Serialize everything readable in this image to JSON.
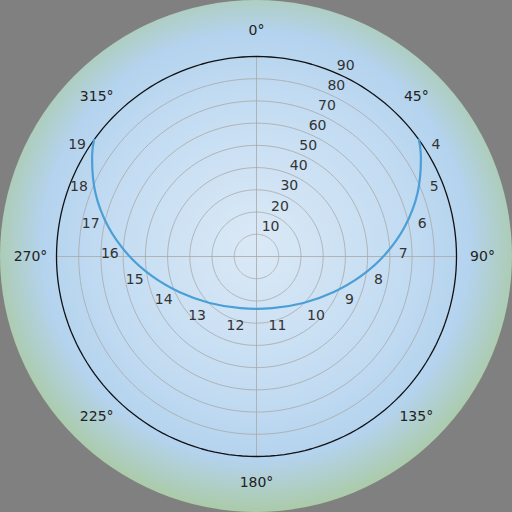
{
  "chart_data": {
    "type": "sun_path",
    "rlim": [
      0,
      90
    ],
    "rticks": [
      10,
      20,
      30,
      40,
      50,
      60,
      70,
      80,
      90
    ],
    "azimuth_ticks": [
      {
        "value": 0,
        "label": "0°"
      },
      {
        "value": 45,
        "label": "45°"
      },
      {
        "value": 90,
        "label": "90°"
      },
      {
        "value": 135,
        "label": "135°"
      },
      {
        "value": 180,
        "label": "180°"
      },
      {
        "value": 225,
        "label": "225°"
      },
      {
        "value": 270,
        "label": "270°"
      },
      {
        "value": 315,
        "label": "315°"
      }
    ],
    "color": "#4a9fd6",
    "grid": true,
    "hours": [
      null,
      4,
      5,
      6,
      7,
      8,
      9,
      10,
      11,
      12,
      13,
      14,
      15,
      16,
      17,
      18,
      19,
      null
    ],
    "azimuth": [
      54.3,
      58.1,
      68.5,
      78.6,
      89.0,
      100.7,
      115.0,
      134.8,
      163.0,
      197.0,
      225.2,
      245.0,
      259.3,
      271.0,
      281.4,
      291.5,
      301.9,
      305.7
    ],
    "zenith": [
      90,
      87.1,
      77.9,
      68.1,
      58.0,
      47.8,
      38.1,
      29.7,
      24.3,
      24.3,
      29.7,
      38.1,
      47.8,
      58.0,
      68.1,
      77.9,
      87.1,
      90
    ]
  }
}
